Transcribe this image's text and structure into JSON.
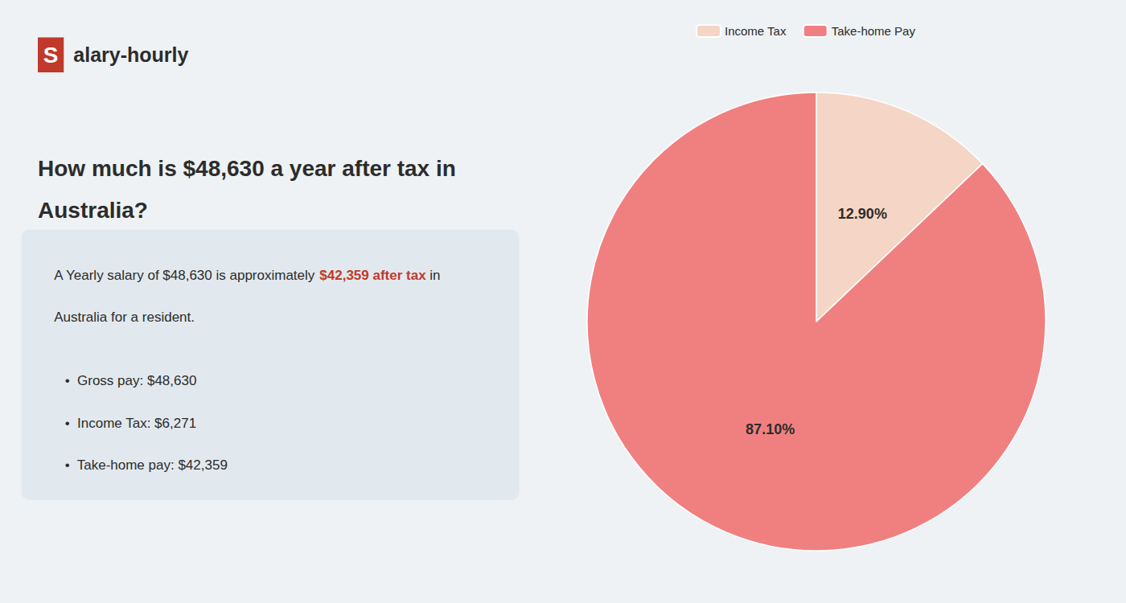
{
  "chart_data": {
    "type": "pie",
    "title": "How much is $48,630 a year after tax in\nAustralia?",
    "categories": [
      "Income Tax",
      "Take-home Pay"
    ],
    "values": [
      12.9,
      87.1
    ],
    "value_labels": [
      "12.90%",
      "87.10%"
    ],
    "colors": [
      "#f5d5c5",
      "#f08080"
    ],
    "data_labels": true,
    "legend": "top",
    "annotations": {
      "logo": [
        {
          "text": "S",
          "color": "#c0392b"
        },
        {
          "text": "alary-hourly"
        }
      ],
      "description": [
        [
          {
            "text": "A Yearly salary of $48,630 is approximately "
          },
          {
            "text": "$42,359 after tax",
            "color": "#c0392b"
          },
          {
            "text": " in"
          }
        ],
        [
          {
            "text": "Australia for a resident."
          }
        ]
      ],
      "bullets": [
        "•  Gross pay: $48,630",
        "•  Income Tax: $6,271",
        "•  Take-home pay: $42,359"
      ]
    }
  }
}
